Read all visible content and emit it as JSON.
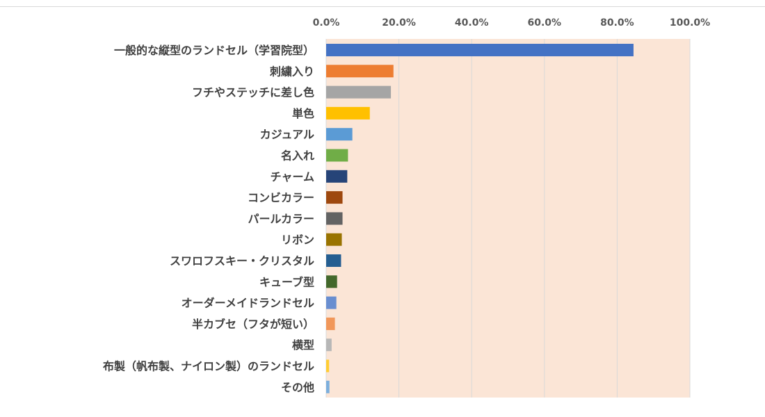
{
  "chart_data": {
    "type": "bar",
    "orientation": "horizontal",
    "categories": [
      "一般的な縦型のランドセル（学習院型）",
      "刺繍入り",
      "フチやステッチに差し色",
      "単色",
      "カジュアル",
      "名入れ",
      "チャーム",
      "コンビカラー",
      "パールカラー",
      "リボン",
      "スワロフスキー・クリスタル",
      "キューブ型",
      "オーダーメイドランドセル",
      "半カブセ（フタが短い）",
      "横型",
      "布製（帆布製、ナイロン製）のランドセル",
      "その他"
    ],
    "values": [
      84.5,
      18.5,
      17.8,
      12.0,
      7.2,
      6.0,
      5.8,
      4.5,
      4.5,
      4.3,
      4.1,
      3.0,
      2.8,
      2.4,
      1.5,
      0.8,
      0.9
    ],
    "colors": [
      "#4472C4",
      "#ED7D31",
      "#A5A5A5",
      "#FFC000",
      "#5B9BD5",
      "#70AD47",
      "#264478",
      "#9E480E",
      "#636363",
      "#997300",
      "#255E91",
      "#43682B",
      "#698ED0",
      "#F1975A",
      "#B7B7B7",
      "#FFCD33",
      "#7CAFDD"
    ],
    "xlim": [
      0,
      100
    ],
    "ticks": [
      "0.0%",
      "20.0%",
      "40.0%",
      "60.0%",
      "80.0%",
      "100.0%"
    ],
    "grid": true,
    "plot_background": "#FBE5D6",
    "gridline_color": "#D9D9D9",
    "title": "",
    "xlabel": "",
    "ylabel": ""
  }
}
